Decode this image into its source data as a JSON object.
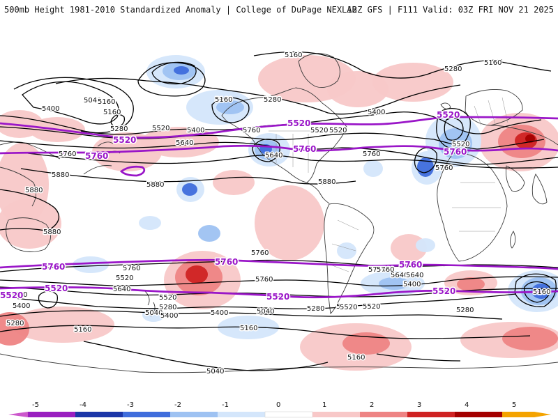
{
  "header": {
    "title": "500mb Height 1981-2010 Standardized Anomaly | College of DuPage NEXLAB",
    "run_info": "12Z GFS | F111 Valid: 03Z FRI NOV 21 2025"
  },
  "contour_labels": [
    "5160",
    "5160",
    "5160",
    "5280",
    "5040",
    "5160",
    "5400",
    "5160",
    "5280",
    "5520",
    "5400",
    "5280",
    "5520",
    "5640",
    "5760",
    "5400",
    "5520",
    "5760",
    "5520",
    "5760",
    "5880",
    "5880",
    "5640",
    "5760",
    "5880",
    "5880",
    "5760",
    "5640",
    "5760",
    "5880",
    "5760",
    "5520",
    "5760",
    "5640",
    "5520",
    "5400",
    "5160",
    "5280",
    "5040",
    "5520",
    "5400",
    "5280",
    "5160",
    "5040",
    "5760",
    "5520",
    "5400",
    "5280",
    "5760",
    "5640",
    "5400",
    "5520",
    "5280",
    "5520",
    "5160",
    "5160",
    "5040"
  ],
  "thick_labels": [
    "5520",
    "5520",
    "5760",
    "5760",
    "5520",
    "5760",
    "5760",
    "5760",
    "5760",
    "5520",
    "5520",
    "5520",
    "5520"
  ],
  "legend": {
    "ticks": [
      "-5",
      "-4",
      "-3",
      "-2",
      "-1",
      "0",
      "1",
      "2",
      "3",
      "4",
      "5"
    ],
    "colors": [
      "#9a1fc0",
      "#1b36a8",
      "#3f6ddc",
      "#9ec2f2",
      "#d4e6fb",
      "#ffffff",
      "#ffffff",
      "#f8c8c8",
      "#ee8484",
      "#cf2323",
      "#a40000",
      "#f4a300"
    ]
  },
  "colors": {
    "contour": "#000000",
    "thickness": "#9a16c8",
    "coastline": "#3a3a3a",
    "border": "#8e8e8e"
  }
}
